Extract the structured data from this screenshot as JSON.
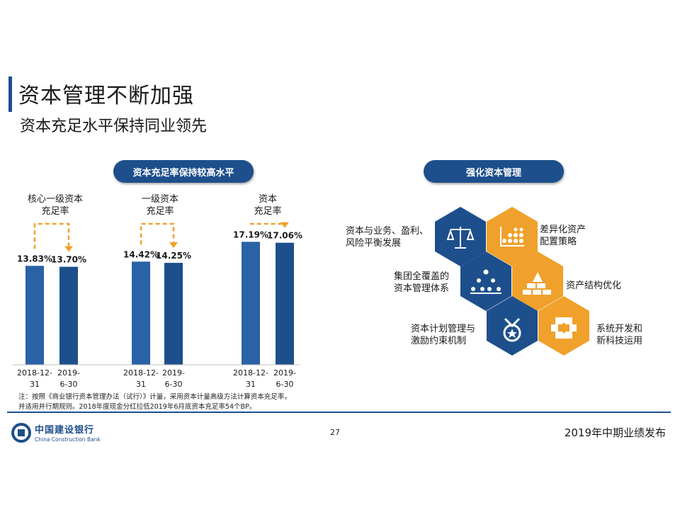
{
  "title": "资本管理不断加强",
  "subtitle": "资本充足水平保持同业领先",
  "left_pill": "资本充足率保持较高水平",
  "right_pill": "强化资本管理",
  "groups": [
    {
      "label_line1": "核心一级资本",
      "label_line2": "充足率"
    },
    {
      "label_line1": "一级资本",
      "label_line2": "充足率"
    },
    {
      "label_line1": "资本",
      "label_line2": "充足率"
    }
  ],
  "chart_data": {
    "type": "bar",
    "categories": [
      "2018-12-31",
      "2019-6-30"
    ],
    "category_lines": [
      [
        "2018-12-",
        "31"
      ],
      [
        "2019-",
        "6-30"
      ]
    ],
    "series": [
      {
        "name": "核心一级资本充足率",
        "values": [
          13.83,
          13.7
        ],
        "labels": [
          "13.83%",
          "13.70%"
        ]
      },
      {
        "name": "一级资本充足率",
        "values": [
          14.42,
          14.25
        ],
        "labels": [
          "14.42%",
          "14.25%"
        ]
      },
      {
        "name": "资本充足率",
        "values": [
          17.19,
          17.06
        ],
        "labels": [
          "17.19%",
          "17.06%"
        ]
      }
    ],
    "colors": {
      "bar2018": "#2a62a6",
      "bar2019": "#1d4f8c",
      "arrow": "#f0a12b"
    }
  },
  "note_line1": "注：按照《商业银行资本管理办法（试行）》计量，采用资本计量高级方法计算资本充足率，",
  "note_line2": "并适用并行期规则。2018年度现金分红拉低2019年6月底资本充足率54个BP。",
  "hex_labels": {
    "l1a": "资本与业务、盈利、",
    "l1b": "风险平衡发展",
    "r1a": "差异化资产",
    "r1b": "配置策略",
    "l2a": "集团全覆盖的",
    "l2b": "资本管理体系",
    "r2": "资产结构优化",
    "l3a": "资本计划管理与",
    "l3b": "激励约束机制",
    "r3a": "系统开发和",
    "r3b": "新科技运用"
  },
  "hex_icons": [
    "scales-icon",
    "asset-matrix-icon",
    "org-chart-icon",
    "building-blocks-icon",
    "medal-icon",
    "gear-puzzle-icon"
  ],
  "colors": {
    "navy": "#1d4f8c",
    "orange": "#f0a12b"
  },
  "logo_cn": "中国建设银行",
  "logo_en": "China Construction Bank",
  "page_number": "27",
  "footer_right": "2019年中期业绩发布"
}
